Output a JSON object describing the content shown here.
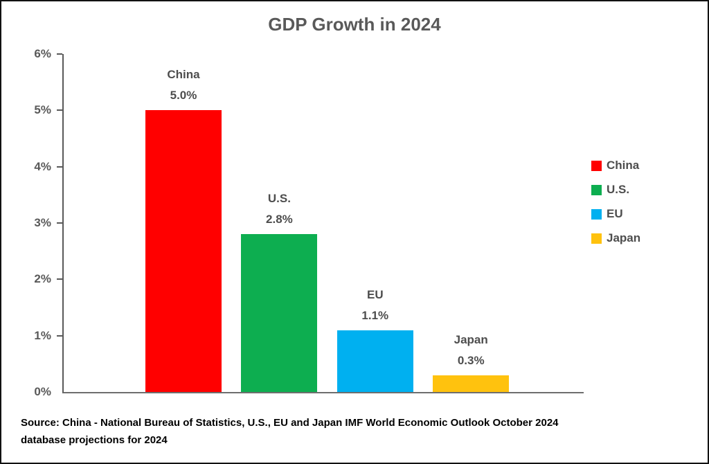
{
  "chart_data": {
    "type": "bar",
    "title": "GDP Growth in 2024",
    "categories": [
      "China",
      "U.S.",
      "EU",
      "Japan"
    ],
    "values": [
      5.0,
      2.8,
      1.1,
      0.3
    ],
    "value_labels": [
      "5.0%",
      "2.8%",
      "1.1%",
      "0.3%"
    ],
    "bar_colors": [
      "#FF0000",
      "#0DAE50",
      "#00B0F0",
      "#FFC20E"
    ],
    "xlabel": "",
    "ylabel": "",
    "ylim": [
      0,
      6
    ],
    "yticks": [
      6,
      5,
      4,
      3,
      2,
      1,
      0
    ],
    "ytick_labels": [
      "6%",
      "5%",
      "4%",
      "3%",
      "2%",
      "1%",
      "0%"
    ],
    "grid": false,
    "legend": {
      "position": "right",
      "entries": [
        {
          "label": "China",
          "color": "#FF0000"
        },
        {
          "label": "U.S.",
          "color": "#0DAE50"
        },
        {
          "label": "EU",
          "color": "#00B0F0"
        },
        {
          "label": "Japan",
          "color": "#FFC20E"
        }
      ]
    }
  },
  "source_note": "Source: China - National Bureau of Statistics, U.S., EU and Japan IMF World Economic Outlook October 2024 database projections for 2024",
  "colors": {
    "axis": "#595959",
    "label_text": "#4d4d4d",
    "source_text": "#000000",
    "background": "#ffffff",
    "frame_border": "#111111"
  }
}
